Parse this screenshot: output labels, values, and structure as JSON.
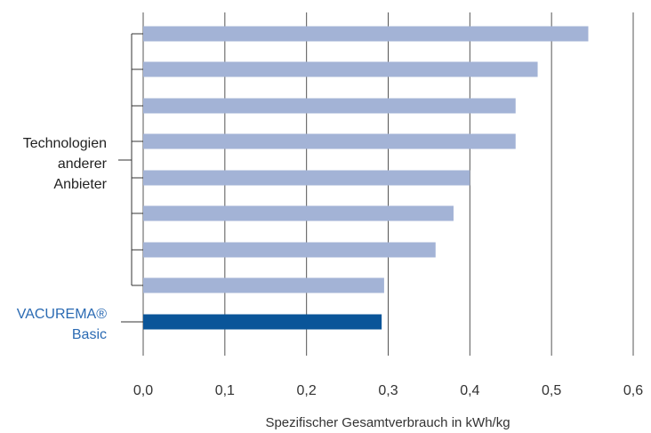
{
  "chart_data": {
    "type": "bar",
    "orientation": "horizontal",
    "xlabel": "Spezifischer Gesamtverbrauch in kWh/kg",
    "xlim": [
      0.0,
      0.6
    ],
    "xticks": [
      "0,0",
      "0,1",
      "0,2",
      "0,3",
      "0,4",
      "0,5",
      "0,6"
    ],
    "grid": true,
    "group_label": [
      "Technologien",
      "anderer",
      "Anbieter"
    ],
    "highlight_label": [
      "VACUREMA®",
      "Basic"
    ],
    "colors": {
      "others": "#a3b3d6",
      "highlight": "#0a5599",
      "grid": "#555555"
    },
    "others_values": [
      0.545,
      0.483,
      0.456,
      0.456,
      0.4,
      0.38,
      0.358,
      0.295
    ],
    "highlight_value": 0.292
  }
}
